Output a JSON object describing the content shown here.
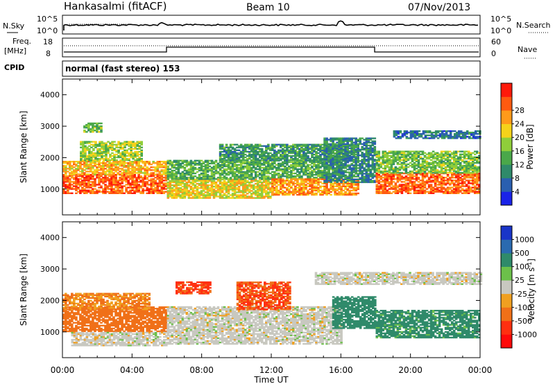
{
  "header": {
    "station": "Hankasalmi (fitACF)",
    "beam": "Beam 10",
    "date": "07/Nov/2013"
  },
  "noise_panel": {
    "left_label": "N.Sky",
    "right_label": "N.Search",
    "left_ticks": [
      "10^5",
      "10^0"
    ],
    "right_ticks": [
      "10^5",
      "10^0"
    ]
  },
  "freq_panel": {
    "left_label": "Freq.",
    "left_unit": "[MHz]",
    "right_label": "Nave",
    "left_ticks": [
      "18",
      "8"
    ],
    "right_ticks": [
      "60",
      "0"
    ]
  },
  "cpid": {
    "label": "CPID",
    "value": "normal (fast stereo) 153"
  },
  "x_axis": {
    "label": "Time UT",
    "ticks": [
      "00:00",
      "04:00",
      "08:00",
      "12:00",
      "16:00",
      "20:00",
      "00:00"
    ]
  },
  "chart_data": [
    {
      "type": "heatmap",
      "title": "",
      "xlabel": "Time UT",
      "ylabel": "Slant Range [km]",
      "xlim": [
        0,
        24
      ],
      "ylim": [
        180,
        4500
      ],
      "y_ticks": [
        1000,
        2000,
        3000,
        4000
      ],
      "colorbar": {
        "label": "Power [dB]",
        "ticks": [
          "4",
          "8",
          "12",
          "16",
          "20",
          "24",
          "28"
        ],
        "colors": [
          "#1a23e8",
          "#2a5fb0",
          "#2f8a6a",
          "#4aa84a",
          "#8fce3a",
          "#f5d21a",
          "#ff9a1a",
          "#ff5a10",
          "#ff1a0a"
        ]
      },
      "regions": [
        {
          "t": [
            0.0,
            6.0
          ],
          "r": [
            850,
            1450
          ],
          "value": 28
        },
        {
          "t": [
            0.0,
            6.0
          ],
          "r": [
            1450,
            1900
          ],
          "value": 22
        },
        {
          "t": [
            1.0,
            4.5
          ],
          "r": [
            1900,
            2500
          ],
          "value": 16
        },
        {
          "t": [
            1.2,
            2.2
          ],
          "r": [
            2800,
            3100
          ],
          "value": 14
        },
        {
          "t": [
            6.0,
            12.0
          ],
          "r": [
            700,
            1300
          ],
          "value": 20
        },
        {
          "t": [
            6.0,
            16.0
          ],
          "r": [
            1300,
            1900
          ],
          "value": 12
        },
        {
          "t": [
            9.0,
            17.0
          ],
          "r": [
            1900,
            2400
          ],
          "value": 10
        },
        {
          "t": [
            12.0,
            17.0
          ],
          "r": [
            800,
            1300
          ],
          "value": 24
        },
        {
          "t": [
            15.0,
            18.0
          ],
          "r": [
            1200,
            2600
          ],
          "value": 8
        },
        {
          "t": [
            18.0,
            24.0
          ],
          "r": [
            850,
            1500
          ],
          "value": 28
        },
        {
          "t": [
            18.0,
            24.0
          ],
          "r": [
            1500,
            2200
          ],
          "value": 14
        },
        {
          "t": [
            19.0,
            24.0
          ],
          "r": [
            2600,
            2850
          ],
          "value": 6
        }
      ]
    },
    {
      "type": "heatmap",
      "title": "",
      "xlabel": "Time UT",
      "ylabel": "Slant Range [km]",
      "xlim": [
        0,
        24
      ],
      "ylim": [
        180,
        4500
      ],
      "y_ticks": [
        1000,
        2000,
        3000,
        4000
      ],
      "colorbar": {
        "label": "Velocity [m s^-1]",
        "ticks": [
          "1000",
          "500",
          "100",
          "25",
          "-25",
          "-100",
          "-500",
          "-1000"
        ],
        "colors": [
          "#1a35c8",
          "#2a6ab0",
          "#2f8a6a",
          "#6cc04a",
          "#c8c8c0",
          "#f0a020",
          "#f07018",
          "#ff3010",
          "#ff0a0a"
        ]
      },
      "regions": [
        {
          "t": [
            0.0,
            6.0
          ],
          "r": [
            1000,
            1800
          ],
          "value": -300
        },
        {
          "t": [
            0.5,
            6.0
          ],
          "r": [
            550,
            1000
          ],
          "value": 0
        },
        {
          "t": [
            6.0,
            16.0
          ],
          "r": [
            600,
            1800
          ],
          "value": 0
        },
        {
          "t": [
            10.0,
            13.0
          ],
          "r": [
            1700,
            2600
          ],
          "value": -500
        },
        {
          "t": [
            6.5,
            8.5
          ],
          "r": [
            2200,
            2600
          ],
          "value": -600
        },
        {
          "t": [
            15.5,
            18.0
          ],
          "r": [
            1100,
            2100
          ],
          "value": 200
        },
        {
          "t": [
            18.0,
            24.0
          ],
          "r": [
            800,
            1700
          ],
          "value": 150
        },
        {
          "t": [
            14.5,
            24.0
          ],
          "r": [
            2500,
            2900
          ],
          "value": 0
        },
        {
          "t": [
            0.0,
            5.0
          ],
          "r": [
            1700,
            2200
          ],
          "value": -100
        }
      ]
    }
  ]
}
